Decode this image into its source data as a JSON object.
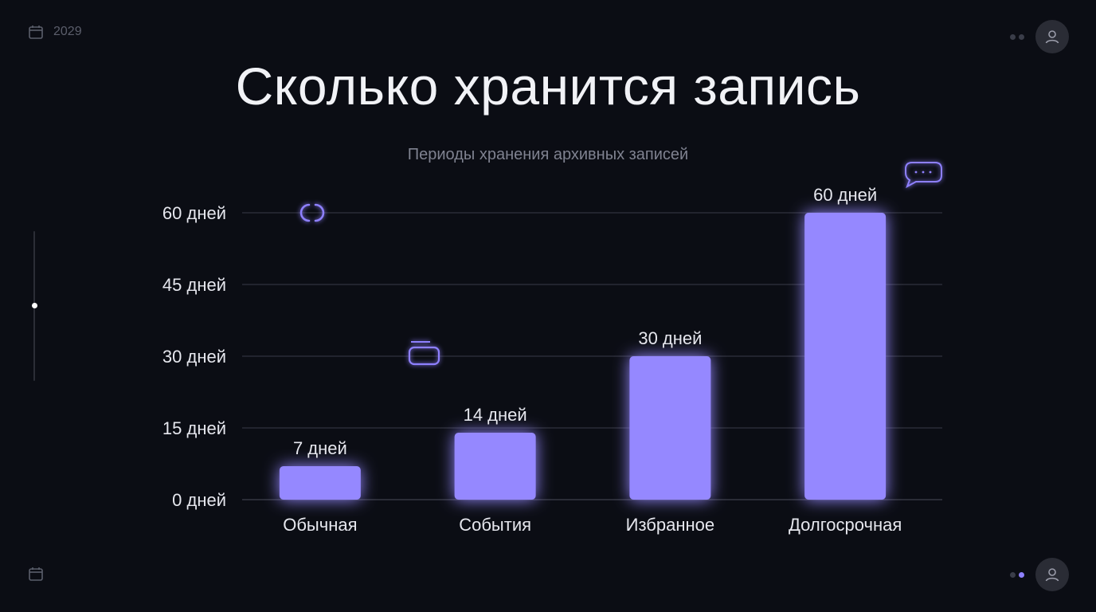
{
  "header": {
    "year": "2029",
    "calendar_icon": "calendar-icon",
    "avatar_icon": "user-icon"
  },
  "title": "Сколько хранится запись",
  "subtitle": "Периоды хранения архивных записей",
  "colors": {
    "background": "#0b0d14",
    "bar": "#9588ff",
    "bar_glow": "#7b6cff",
    "grid": "#3a3c47",
    "accent_dot": "#8e80ff"
  },
  "chart_data": {
    "type": "bar",
    "title": "Сколько хранится запись",
    "subtitle": "Периоды хранения архивных записей",
    "categories": [
      "Обычная",
      "События",
      "Избранное",
      "Долгосрочная"
    ],
    "values": [
      7,
      14,
      30,
      60
    ],
    "value_labels": [
      "7 дней",
      "14 дней",
      "30 дней",
      "60 дней"
    ],
    "yticks": [
      0,
      15,
      30,
      45,
      60
    ],
    "ytick_labels": [
      "0 дней",
      "15 дней",
      "30 дней",
      "45 дней",
      "60 дней"
    ],
    "ylim": [
      0,
      60
    ],
    "grid": true,
    "legend": "none",
    "xlabel": "",
    "ylabel": ""
  },
  "decorations": [
    "loader-icon",
    "toggle-icon",
    "chat-bubble-icon"
  ]
}
